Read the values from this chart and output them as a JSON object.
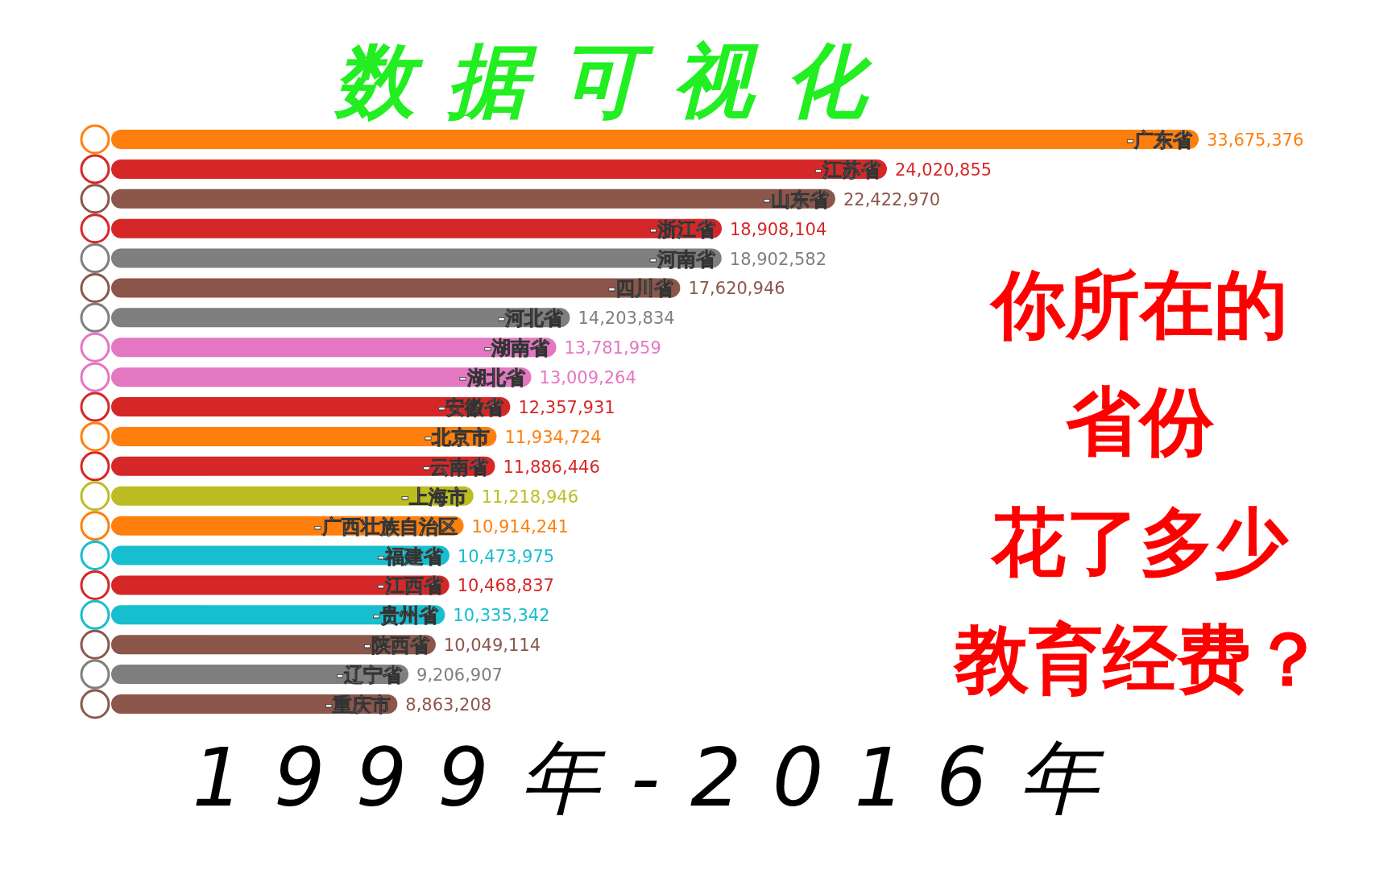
{
  "chart_data": {
    "type": "bar",
    "orientation": "horizontal",
    "title": "数据可视化",
    "subtitle": "1999年-2016年",
    "annotations": [
      "你所在的",
      "省份",
      "花了多少",
      "教育经费？"
    ],
    "categories": [
      "-广东省",
      "-江苏省",
      "-山东省",
      "-浙江省",
      "-河南省",
      "-四川省",
      "-河北省",
      "-湖南省",
      "-湖北省",
      "-安徽省",
      "-北京市",
      "-云南省",
      "-上海市",
      "-广西壮族自治区",
      "-福建省",
      "-江西省",
      "-贵州省",
      "-陕西省",
      "-辽宁省",
      "-重庆市"
    ],
    "values": [
      33675376,
      24020855,
      22422970,
      18908104,
      18902582,
      17620946,
      14203834,
      13781959,
      13009264,
      12357931,
      11934724,
      11886446,
      11218946,
      10914241,
      10473975,
      10468837,
      10335342,
      10049114,
      9206907,
      8863208
    ],
    "value_labels": [
      "33,675,376",
      "24,020,855",
      "22,422,970",
      "18,908,104",
      "18,902,582",
      "17,620,946",
      "14,203,834",
      "13,781,959",
      "13,009,264",
      "12,357,931",
      "11,934,724",
      "11,886,446",
      "11,218,946",
      "10,914,241",
      "10,473,975",
      "10,468,837",
      "10,335,342",
      "10,049,114",
      "9,206,907",
      "8,863,208"
    ],
    "colors": [
      "#ff7f0e",
      "#d62728",
      "#8c564b",
      "#d62728",
      "#7f7f7f",
      "#8c564b",
      "#7f7f7f",
      "#e377c2",
      "#e377c2",
      "#d62728",
      "#ff7f0e",
      "#d62728",
      "#bcbd22",
      "#ff7f0e",
      "#17becf",
      "#d62728",
      "#17becf",
      "#8c564b",
      "#7f7f7f",
      "#8c564b"
    ]
  }
}
